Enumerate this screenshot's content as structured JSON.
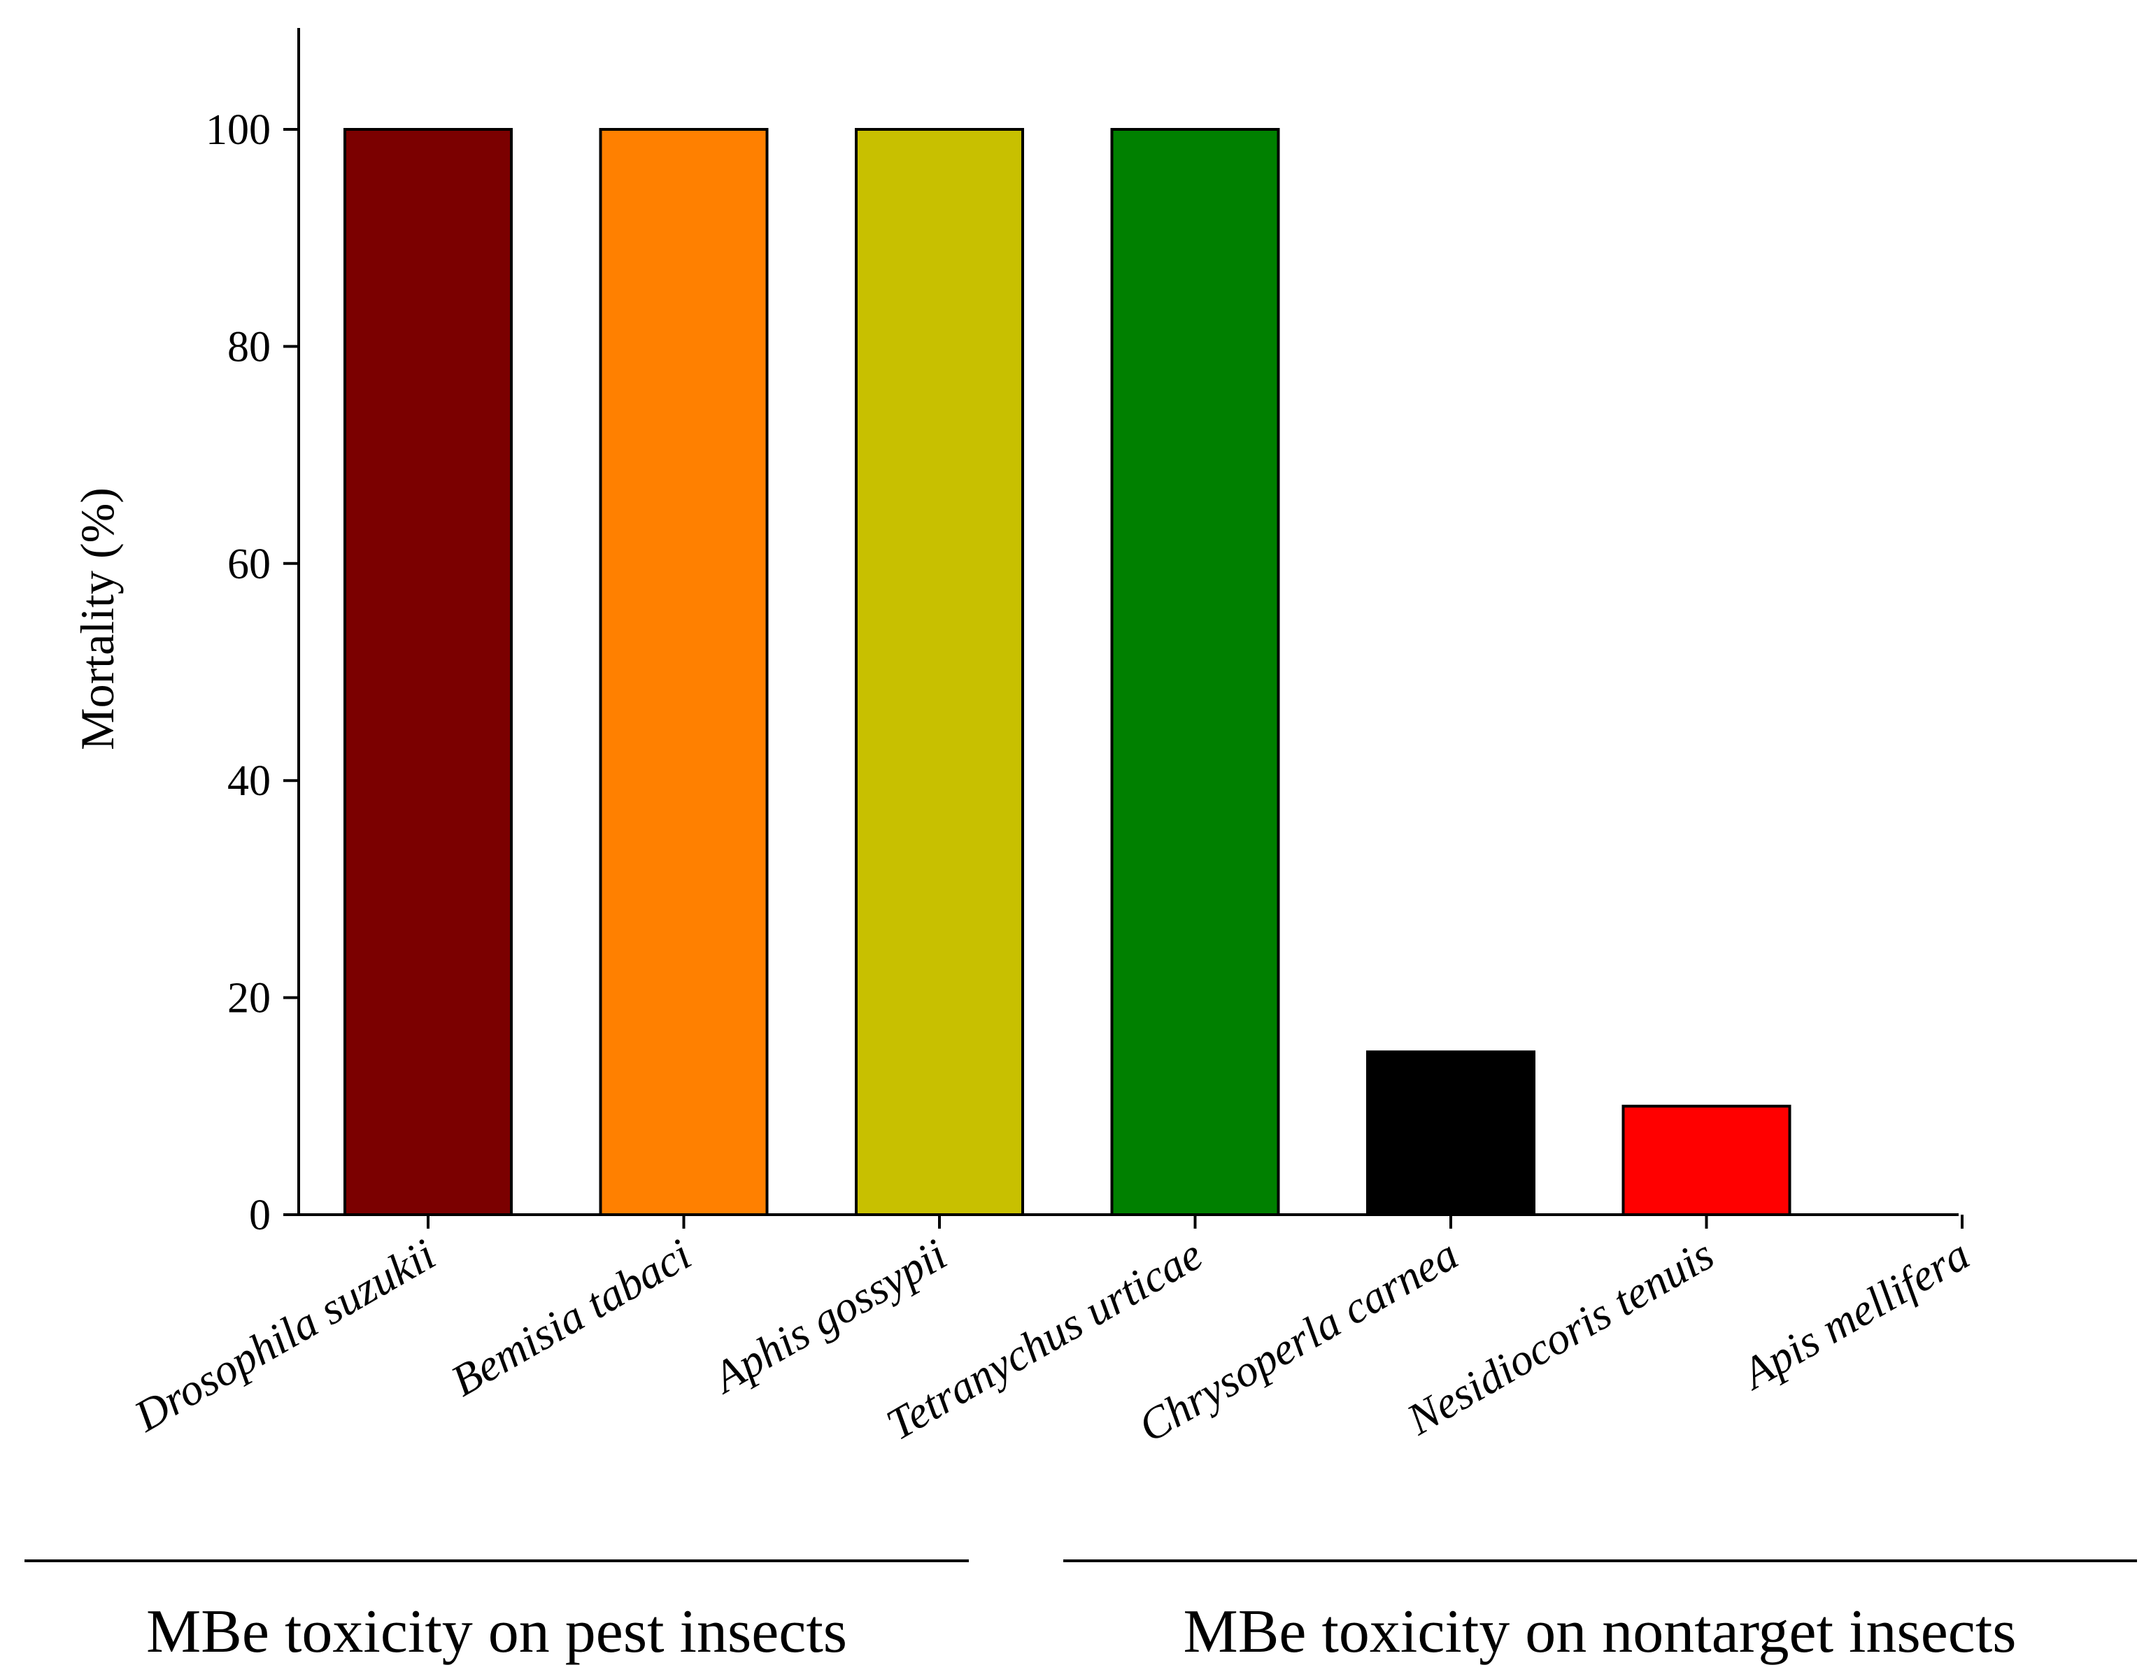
{
  "chart_data": {
    "type": "bar",
    "title": "",
    "xlabel": "",
    "ylabel": "Mortality (%)",
    "ylim": [
      0,
      110
    ],
    "yticks": [
      0,
      20,
      40,
      60,
      80,
      100
    ],
    "grid": false,
    "categories": [
      "Drosophila suzukii",
      "Bemisia tabaci",
      "Aphis gossypii",
      "Tetranychus urticae",
      "Chrysoperla carnea",
      "Nesidiocoris tenuis",
      "Apis mellifera"
    ],
    "values": [
      100,
      100,
      100,
      100,
      15,
      10,
      0
    ],
    "colors": [
      "#7b0000",
      "#ff8000",
      "#c8c000",
      "#008000",
      "#000000",
      "#ff0000",
      "#ffffff"
    ],
    "groups": [
      {
        "label": "MBe toxicity on pest insects",
        "categories": [
          0,
          1,
          2,
          3
        ]
      },
      {
        "label": "MBe toxicity on nontarget insects",
        "categories": [
          4,
          5,
          6
        ]
      }
    ]
  }
}
